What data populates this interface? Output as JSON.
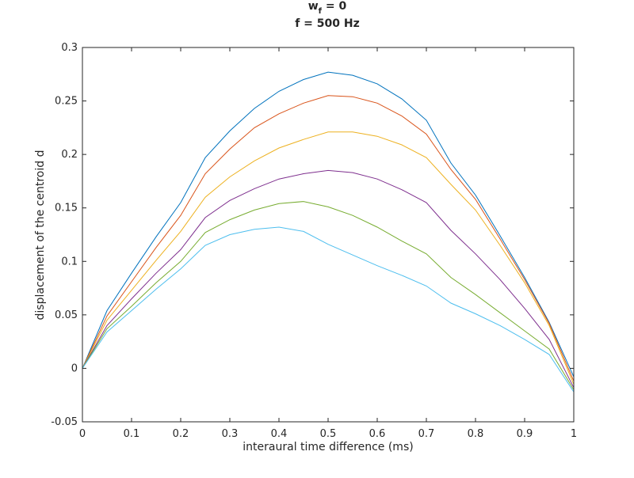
{
  "chart_data": {
    "type": "line",
    "title_line1_main": "w",
    "title_line1_sub": "f",
    "title_line1_rest": " = 0",
    "title_line2": "f = 500 Hz",
    "xlabel": "interaural time difference (ms)",
    "ylabel": "displacement of the centroid d",
    "xlim": [
      0,
      1
    ],
    "ylim": [
      -0.05,
      0.3
    ],
    "xticks": [
      0,
      0.1,
      0.2,
      0.3,
      0.4,
      0.5,
      0.6,
      0.7,
      0.8,
      0.9,
      1
    ],
    "xtick_labels": [
      "0",
      "0.1",
      "0.2",
      "0.3",
      "0.4",
      "0.5",
      "0.6",
      "0.7",
      "0.8",
      "0.9",
      "1"
    ],
    "yticks": [
      -0.05,
      0,
      0.05,
      0.1,
      0.15,
      0.2,
      0.25,
      0.3
    ],
    "ytick_labels": [
      "-0.05",
      "0",
      "0.05",
      "0.1",
      "0.15",
      "0.2",
      "0.25",
      "0.3"
    ],
    "grid": false,
    "x": [
      0,
      0.05,
      0.1,
      0.15,
      0.2,
      0.25,
      0.3,
      0.35,
      0.4,
      0.45,
      0.5,
      0.55,
      0.6,
      0.65,
      0.7,
      0.75,
      0.8,
      0.85,
      0.9,
      0.95,
      1
    ],
    "series": [
      {
        "color": "#0072BD",
        "values": [
          0,
          0.054,
          0.089,
          0.123,
          0.155,
          0.197,
          0.222,
          0.243,
          0.259,
          0.27,
          0.277,
          0.274,
          0.266,
          0.252,
          0.232,
          0.192,
          0.162,
          0.124,
          0.085,
          0.043,
          -0.008
        ]
      },
      {
        "color": "#D95319",
        "values": [
          0,
          0.049,
          0.081,
          0.113,
          0.143,
          0.182,
          0.205,
          0.225,
          0.238,
          0.248,
          0.255,
          0.254,
          0.248,
          0.236,
          0.219,
          0.186,
          0.158,
          0.121,
          0.083,
          0.042,
          -0.012
        ]
      },
      {
        "color": "#EDB120",
        "values": [
          0,
          0.045,
          0.073,
          0.101,
          0.128,
          0.16,
          0.179,
          0.194,
          0.206,
          0.214,
          0.221,
          0.221,
          0.217,
          0.209,
          0.197,
          0.172,
          0.148,
          0.115,
          0.08,
          0.04,
          -0.015
        ]
      },
      {
        "color": "#7E2F8E",
        "values": [
          0,
          0.04,
          0.065,
          0.089,
          0.111,
          0.141,
          0.157,
          0.168,
          0.177,
          0.182,
          0.185,
          0.183,
          0.177,
          0.167,
          0.155,
          0.129,
          0.107,
          0.083,
          0.056,
          0.027,
          -0.018
        ]
      },
      {
        "color": "#77AC30",
        "values": [
          0,
          0.037,
          0.058,
          0.08,
          0.1,
          0.127,
          0.139,
          0.148,
          0.154,
          0.156,
          0.151,
          0.143,
          0.132,
          0.119,
          0.107,
          0.085,
          0.069,
          0.052,
          0.035,
          0.018,
          -0.02
        ]
      },
      {
        "color": "#4DBEEE",
        "values": [
          0,
          0.034,
          0.054,
          0.074,
          0.093,
          0.115,
          0.125,
          0.13,
          0.132,
          0.128,
          0.116,
          0.106,
          0.096,
          0.087,
          0.077,
          0.061,
          0.051,
          0.04,
          0.027,
          0.013,
          -0.022
        ]
      }
    ]
  }
}
